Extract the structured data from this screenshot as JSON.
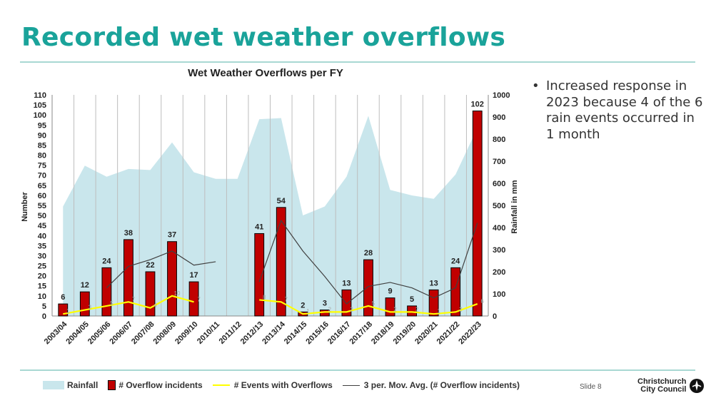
{
  "slide": {
    "title": "Recorded wet weather overflows",
    "bullet": "Increased response in 2023 because 4 of the 6 rain events occurred in 1 month",
    "slide_number": "Slide 8",
    "logo_line1": "Christchurch",
    "logo_line2": "City Council"
  },
  "chart_data": {
    "type": "bar",
    "title": "Wet Weather Overflows per FY",
    "ylabel": "Number",
    "y2label": "Rainfall in mm",
    "ylim": [
      0,
      110
    ],
    "y2lim": [
      0,
      1000
    ],
    "yticks": [
      0,
      5,
      10,
      15,
      20,
      25,
      30,
      35,
      40,
      45,
      50,
      55,
      60,
      65,
      70,
      75,
      80,
      85,
      90,
      95,
      100,
      105,
      110
    ],
    "y2ticks": [
      0,
      100,
      200,
      300,
      400,
      500,
      600,
      700,
      800,
      900,
      1000
    ],
    "grid": "vertical",
    "legend_position": "bottom",
    "categories": [
      "2003/04",
      "2004/05",
      "2005/06",
      "2006/07",
      "2007/08",
      "2008/09",
      "2009/10",
      "2010/11",
      "2011/12",
      "2012/13",
      "2013/14",
      "2014/15",
      "2015/16",
      "2016/17",
      "2017/18",
      "2018/19",
      "2019/20",
      "2020/21",
      "2021/22",
      "2022/23"
    ],
    "series": [
      {
        "name": "Rainfall",
        "type": "area",
        "axis": "right",
        "values": [
          495,
          680,
          630,
          665,
          660,
          785,
          650,
          620,
          620,
          890,
          895,
          455,
          495,
          630,
          905,
          570,
          545,
          530,
          640,
          850
        ]
      },
      {
        "name": "# Overflow incidents",
        "type": "bar",
        "axis": "left",
        "values": [
          6,
          12,
          24,
          38,
          22,
          37,
          17,
          null,
          null,
          41,
          54,
          2,
          3,
          13,
          28,
          9,
          5,
          13,
          24,
          102
        ]
      },
      {
        "name": "# Events with Overflows",
        "type": "line",
        "axis": "left",
        "values": [
          1,
          3,
          5,
          7,
          4,
          10,
          7,
          null,
          null,
          8,
          7,
          1,
          2,
          2,
          5,
          2,
          2,
          1,
          2,
          6
        ]
      },
      {
        "name": "3 per. Mov. Avg. (# Overflow incidents)",
        "type": "line",
        "axis": "left",
        "values": [
          null,
          null,
          14,
          24.7,
          28,
          32.3,
          25.3,
          27,
          null,
          17,
          47.5,
          32.3,
          19.7,
          6,
          14.7,
          16.7,
          14,
          9,
          14,
          46.3
        ]
      }
    ]
  },
  "colors": {
    "accent": "#1aa39a",
    "rainfall": "#c9e6ec",
    "bar": "#c00000",
    "events": "#ffff00",
    "movavg": "#404040"
  }
}
